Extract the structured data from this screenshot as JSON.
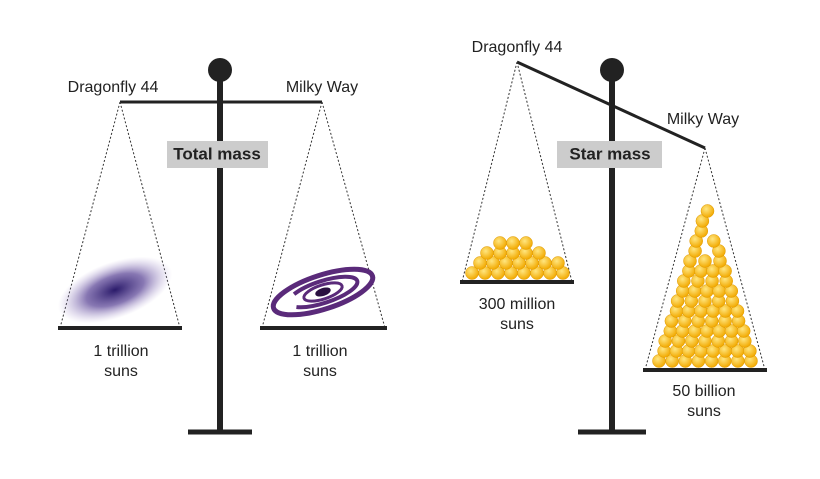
{
  "scales": [
    {
      "caption": "Total mass",
      "left": {
        "name": "Dragonfly 44",
        "lines": [
          "1 trillion",
          "suns"
        ]
      },
      "right": {
        "name": "Milky Way",
        "lines": [
          "1 trillion",
          "suns"
        ]
      }
    },
    {
      "caption": "Star mass",
      "left": {
        "name": "Dragonfly 44",
        "lines": [
          "300 million",
          "suns"
        ]
      },
      "right": {
        "name": "Milky Way",
        "lines": [
          "50 billion",
          "suns"
        ]
      }
    }
  ]
}
